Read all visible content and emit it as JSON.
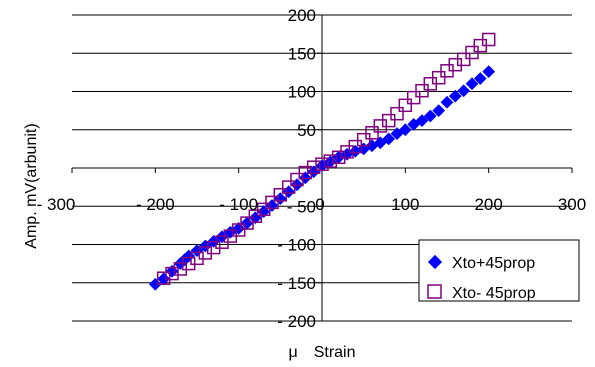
{
  "chart_data": {
    "type": "scatter",
    "xlabel": "μ　Strain",
    "ylabel": "Amp. mV(arbunit)",
    "xlim": [
      -300,
      300
    ],
    "ylim": [
      -200,
      200
    ],
    "x_ticks": [
      -300,
      -200,
      -100,
      0,
      100,
      200,
      300
    ],
    "y_ticks": [
      -200,
      -150,
      -100,
      -50,
      50,
      100,
      150,
      200
    ],
    "x_tick_labels": [
      "- 300",
      "- 200",
      "- 100",
      "0",
      "100",
      "200",
      "300"
    ],
    "y_tick_labels": [
      "- 200",
      "- 150",
      "- 100",
      "- 50",
      "50",
      "100",
      "150",
      "200"
    ],
    "grid": "horizontal",
    "legend_position": "bottom-right",
    "series": [
      {
        "name": "Xto+45prop",
        "marker": "filled-diamond",
        "color": "#0000ff",
        "x": [
          -200,
          -190,
          -180,
          -170,
          -165,
          -160,
          -150,
          -140,
          -130,
          -120,
          -110,
          -100,
          -90,
          -80,
          -70,
          -60,
          -50,
          -40,
          -30,
          -20,
          -10,
          0,
          10,
          20,
          30,
          40,
          50,
          60,
          70,
          80,
          90,
          100,
          110,
          120,
          130,
          140,
          150,
          160,
          170,
          180,
          190,
          200
        ],
        "y": [
          -152,
          -145,
          -135,
          -125,
          -120,
          -115,
          -108,
          -102,
          -96,
          -90,
          -84,
          -79,
          -72,
          -65,
          -57,
          -49,
          -40,
          -31,
          -22,
          -13,
          -5,
          3,
          8,
          14,
          18,
          22,
          25,
          29,
          33,
          38,
          45,
          50,
          57,
          62,
          68,
          75,
          86,
          94,
          101,
          110,
          117,
          126
        ]
      },
      {
        "name": "Xto- 45prop",
        "marker": "open-square",
        "color": "#800080",
        "x": [
          -190,
          -180,
          -170,
          -160,
          -150,
          -140,
          -130,
          -120,
          -110,
          -100,
          -90,
          -80,
          -70,
          -60,
          -50,
          -40,
          -30,
          -20,
          -10,
          0,
          10,
          20,
          30,
          40,
          50,
          60,
          70,
          80,
          90,
          100,
          110,
          120,
          130,
          140,
          150,
          160,
          170,
          180,
          190,
          200
        ],
        "y": [
          -144,
          -138,
          -132,
          -125,
          -118,
          -111,
          -104,
          -97,
          -89,
          -81,
          -72,
          -63,
          -54,
          -45,
          -35,
          -25,
          -15,
          -6,
          1,
          5,
          9,
          14,
          21,
          28,
          37,
          46,
          55,
          62,
          71,
          82,
          92,
          101,
          110,
          118,
          127,
          135,
          142,
          151,
          160,
          168
        ]
      }
    ]
  }
}
